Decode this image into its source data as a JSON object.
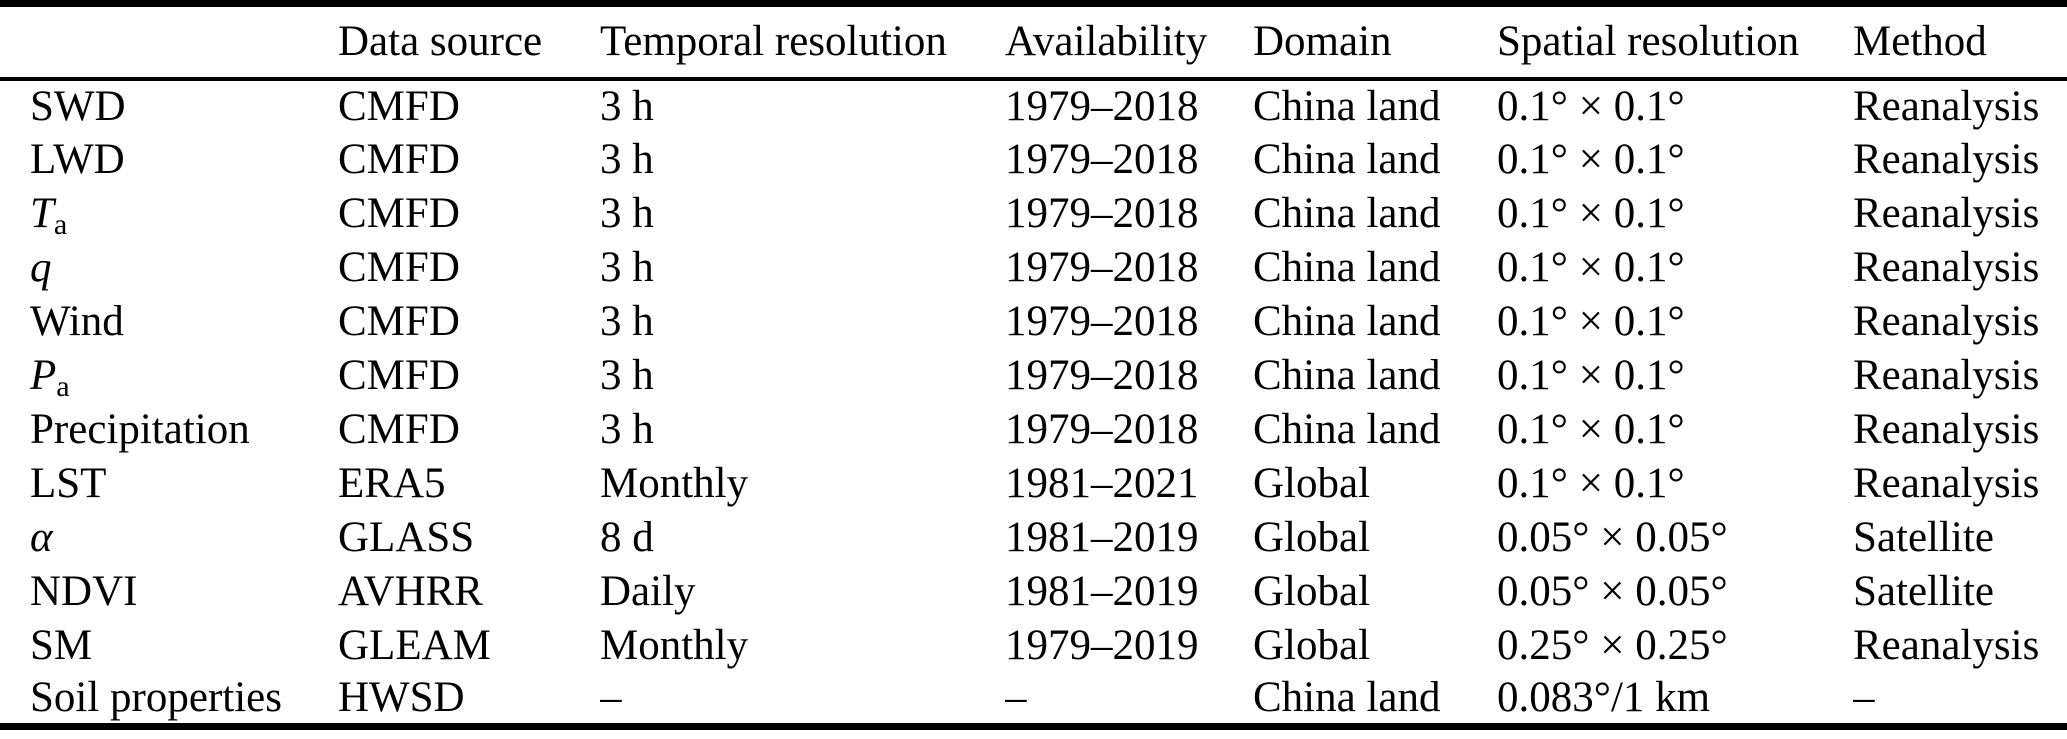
{
  "table": {
    "columns": [
      "",
      "Data source",
      "Temporal resolution",
      "Availability",
      "Domain",
      "Spatial resolution",
      "Method"
    ],
    "missing_value_symbol": "–",
    "rows": [
      {
        "name": [
          {
            "t": "SWD"
          }
        ],
        "source": "CMFD",
        "temporal": "3 h",
        "availability": "1979–2018",
        "availability_align": "left",
        "domain": "China land",
        "spatial": "0.1° × 0.1°",
        "method": "Reanalysis"
      },
      {
        "name": [
          {
            "t": "LWD"
          }
        ],
        "source": "CMFD",
        "temporal": "3 h",
        "availability": "1979–2018",
        "availability_align": "left",
        "domain": "China land",
        "spatial": "0.1° × 0.1°",
        "method": "Reanalysis"
      },
      {
        "name": [
          {
            "t": "T",
            "i": true
          },
          {
            "t": "a",
            "sub": true
          }
        ],
        "source": "CMFD",
        "temporal": "3 h",
        "availability": "1979–2018",
        "availability_align": "left",
        "domain": "China land",
        "spatial": "0.1° × 0.1°",
        "method": "Reanalysis"
      },
      {
        "name": [
          {
            "t": "q",
            "i": true
          }
        ],
        "source": "CMFD",
        "temporal": "3 h",
        "availability": "1979–2018",
        "availability_align": "left",
        "domain": "China land",
        "spatial": "0.1° × 0.1°",
        "method": "Reanalysis"
      },
      {
        "name": [
          {
            "t": "Wind"
          }
        ],
        "source": "CMFD",
        "temporal": "3 h",
        "availability": "1979–2018",
        "availability_align": "left",
        "domain": "China land",
        "spatial": "0.1° × 0.1°",
        "method": "Reanalysis"
      },
      {
        "name": [
          {
            "t": "P",
            "i": true
          },
          {
            "t": "a",
            "sub": true
          }
        ],
        "source": "CMFD",
        "temporal": "3 h",
        "availability": "1979–2018",
        "availability_align": "left",
        "domain": "China land",
        "spatial": "0.1° × 0.1°",
        "method": "Reanalysis"
      },
      {
        "name": [
          {
            "t": "Precipitation"
          }
        ],
        "source": "CMFD",
        "temporal": "3 h",
        "availability": "1979–2018",
        "availability_align": "left",
        "domain": "China land",
        "spatial": "0.1° × 0.1°",
        "method": "Reanalysis"
      },
      {
        "name": [
          {
            "t": "LST"
          }
        ],
        "source": "ERA5",
        "temporal": "Monthly",
        "availability": "1981–2021",
        "availability_align": "left",
        "domain": "Global",
        "spatial": "0.1° × 0.1°",
        "method": "Reanalysis"
      },
      {
        "name": [
          {
            "t": "α",
            "i": true
          }
        ],
        "source": "GLASS",
        "temporal": "8 d",
        "availability": "1981–2019",
        "availability_align": "left",
        "domain": "Global",
        "spatial": "0.05° × 0.05°",
        "method": "Satellite"
      },
      {
        "name": [
          {
            "t": "NDVI"
          }
        ],
        "source": "AVHRR",
        "temporal": "Daily",
        "availability": "1981–2019",
        "availability_align": "left",
        "domain": "Global",
        "spatial": "0.05° × 0.05°",
        "method": "Satellite"
      },
      {
        "name": [
          {
            "t": "SM"
          }
        ],
        "source": "GLEAM",
        "temporal": "Monthly",
        "availability": "1979–2019",
        "availability_align": "left",
        "domain": "Global",
        "spatial": "0.25° × 0.25°",
        "method": "Reanalysis"
      },
      {
        "name": [
          {
            "t": "Soil properties"
          }
        ],
        "source": "HWSD",
        "temporal": "–",
        "availability": "–",
        "availability_align": "right",
        "domain": "China land",
        "spatial": "0.083°/1 km",
        "method": "–"
      }
    ]
  }
}
